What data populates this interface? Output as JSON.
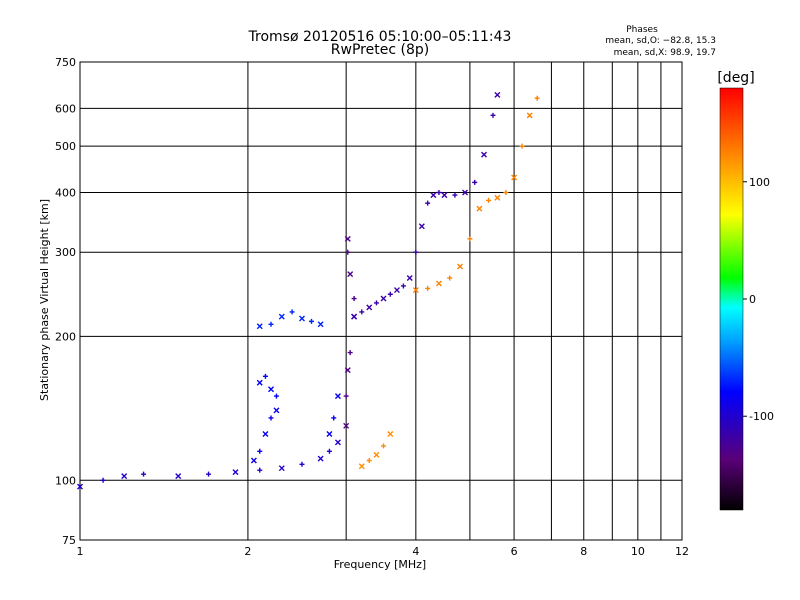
{
  "chart_data": {
    "type": "scatter",
    "title": "Tromsø 20120516 05:10:00–05:11:43",
    "subtitle": "RwPretec (8p)",
    "xlabel": "Frequency [MHz]",
    "ylabel": "Stationary phase Virtual Height [km]",
    "xscale": "log",
    "yscale": "log",
    "xlim": [
      1,
      12
    ],
    "ylim": [
      75,
      750
    ],
    "xticks": [
      1,
      2,
      4,
      6,
      8,
      10,
      12
    ],
    "xgrid": [
      1,
      2,
      3,
      4,
      5,
      6,
      7,
      8,
      9,
      10,
      11,
      12
    ],
    "yticks": [
      75,
      100,
      200,
      300,
      400,
      500,
      600,
      750
    ],
    "grid": true,
    "legend_title": "Phases",
    "stats": [
      "mean, sd,O: −82.8, 15.3",
      "mean, sd,X:  98.9, 19.7"
    ],
    "colorbar": {
      "label": "[deg]",
      "min": -180,
      "max": 180,
      "ticks": [
        100,
        0,
        -100
      ]
    },
    "traces": [
      {
        "name": "base-layer",
        "phase": -100,
        "x": [
          1.0,
          1.1,
          1.2,
          1.3,
          1.5,
          1.7,
          1.9,
          2.1,
          2.3,
          2.5,
          2.7,
          2.8,
          2.9
        ],
        "y": [
          97,
          100,
          102,
          103,
          102,
          103,
          104,
          105,
          106,
          108,
          111,
          115,
          120
        ]
      },
      {
        "name": "trace-2mhz-lower",
        "phase": -85,
        "x": [
          2.05,
          2.1,
          2.15,
          2.2,
          2.25
        ],
        "y": [
          110,
          115,
          125,
          135,
          140
        ]
      },
      {
        "name": "trace-2mhz-upper",
        "phase": -80,
        "x": [
          2.1,
          2.15,
          2.2,
          2.25
        ],
        "y": [
          160,
          165,
          155,
          150
        ]
      },
      {
        "name": "trace-2.5mhz",
        "phase": -70,
        "x": [
          2.1,
          2.2,
          2.3,
          2.4,
          2.5,
          2.6,
          2.7
        ],
        "y": [
          210,
          212,
          220,
          225,
          218,
          215,
          212
        ]
      },
      {
        "name": "trace-2.9mhz",
        "phase": -85,
        "x": [
          2.8,
          2.85,
          2.9
        ],
        "y": [
          125,
          135,
          150
        ]
      },
      {
        "name": "trace-3mhz-vertical",
        "phase": -130,
        "x": [
          3.0,
          3.0,
          3.02,
          3.05,
          3.1,
          3.1,
          3.05,
          3.02,
          3.02
        ],
        "y": [
          130,
          150,
          170,
          185,
          220,
          240,
          270,
          300,
          320
        ]
      },
      {
        "name": "trace-3-4mhz",
        "phase": -115,
        "x": [
          3.1,
          3.2,
          3.3,
          3.4,
          3.5,
          3.6,
          3.7,
          3.8,
          3.9,
          4.0,
          4.1,
          4.2,
          4.3,
          4.4,
          4.5,
          4.7,
          4.9,
          5.1,
          5.3,
          5.5,
          5.6
        ],
        "y": [
          220,
          225,
          230,
          235,
          240,
          245,
          250,
          255,
          265,
          300,
          340,
          380,
          395,
          400,
          395,
          395,
          400,
          420,
          480,
          580,
          640
        ]
      },
      {
        "name": "trace-warm-low",
        "phase": 120,
        "x": [
          3.2,
          3.3,
          3.4,
          3.5,
          3.6
        ],
        "y": [
          107,
          110,
          113,
          118,
          125
        ]
      },
      {
        "name": "trace-warm-x",
        "phase": 125,
        "x": [
          4.0,
          4.2,
          4.4,
          4.6,
          4.8,
          5.0,
          5.2,
          5.4,
          5.6,
          5.8,
          6.0,
          6.2,
          6.4,
          6.6
        ],
        "y": [
          250,
          252,
          258,
          265,
          280,
          320,
          370,
          385,
          390,
          400,
          430,
          500,
          580,
          630
        ]
      }
    ]
  }
}
